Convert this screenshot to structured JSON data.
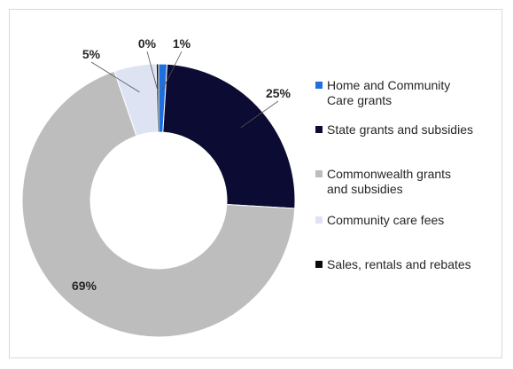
{
  "chart_data": {
    "type": "pie",
    "donut": true,
    "title": "",
    "categories": [
      "Home and Community Care grants",
      "State grants and subsidies",
      "Commonwealth grants and subsidies",
      "Community care fees",
      "Sales, rentals and rebates"
    ],
    "legend_labels": [
      "Home and Community\nCare grants",
      "State grants and subsidies",
      "Commonwealth grants\nand subsidies",
      "Community care fees",
      "Sales, rentals and rebates"
    ],
    "values": [
      1,
      25,
      69,
      5,
      0
    ],
    "labels": [
      "1%",
      "25%",
      "69%",
      "5%",
      "0%"
    ],
    "colors": [
      "#1f6fe0",
      "#0b0b33",
      "#bdbdbd",
      "#dde3f2",
      "#0a0a0a"
    ],
    "legend_position": "right"
  }
}
